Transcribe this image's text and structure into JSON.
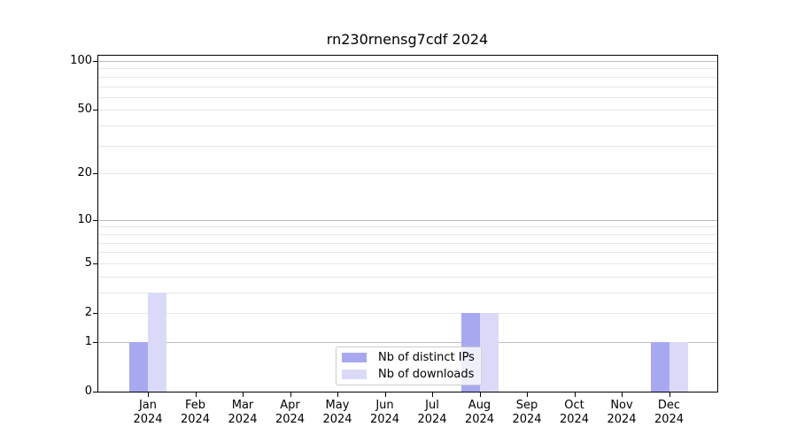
{
  "figure": {
    "title": "rn230rnensg7cdf 2024",
    "background": "#ffffff"
  },
  "chart_data": {
    "type": "bar",
    "title": "rn230rnensg7cdf 2024",
    "categories": [
      "Jan 2024",
      "Feb 2024",
      "Mar 2024",
      "Apr 2024",
      "May 2024",
      "Jun 2024",
      "Jul 2024",
      "Aug 2024",
      "Sep 2024",
      "Oct 2024",
      "Nov 2024",
      "Dec 2024"
    ],
    "series": [
      {
        "name": "Nb of distinct IPs",
        "color": "#a8a8f0",
        "values": [
          1,
          0,
          0,
          0,
          0,
          0,
          0,
          2,
          0,
          0,
          0,
          1
        ]
      },
      {
        "name": "Nb of downloads",
        "color": "#dadaf8",
        "values": [
          3,
          0,
          0,
          0,
          0,
          0,
          0,
          2,
          0,
          0,
          0,
          1
        ]
      }
    ],
    "xlabel": "",
    "ylabel": "",
    "y_scale": "log1p",
    "ylim": [
      0,
      100
    ],
    "y_tick_labels": [
      0,
      1,
      2,
      5,
      10,
      20,
      50,
      100
    ],
    "y_minor_gridlines": [
      2,
      3,
      4,
      5,
      6,
      7,
      8,
      9,
      20,
      30,
      40,
      50,
      60,
      70,
      80,
      90
    ],
    "y_major_gridlines": [
      1,
      10,
      100
    ],
    "grid": "horizontal",
    "legend_position": "lower-center"
  },
  "colors": {
    "grid_major": "#bdbdbd",
    "grid_minor": "#e8e8e8",
    "axis": "#000000"
  }
}
